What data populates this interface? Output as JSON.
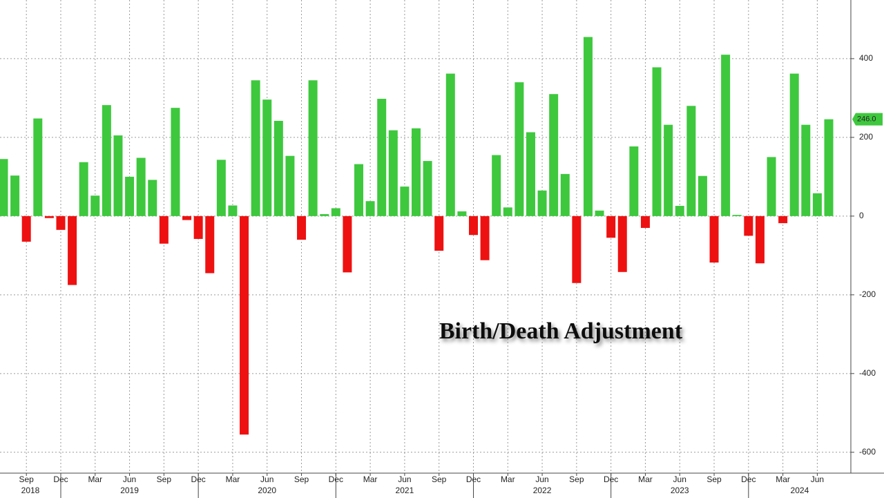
{
  "chart_data": {
    "type": "bar",
    "annotation": "Birth/Death Adjustment",
    "categories": [
      null,
      null,
      "Sep",
      null,
      null,
      "Dec",
      null,
      null,
      "Mar",
      null,
      null,
      "Jun",
      null,
      null,
      "Sep",
      null,
      null,
      "Dec",
      null,
      null,
      "Mar",
      null,
      null,
      "Jun",
      null,
      null,
      "Sep",
      null,
      null,
      "Dec",
      null,
      null,
      "Mar",
      null,
      null,
      "Jun",
      null,
      null,
      "Sep",
      null,
      null,
      "Dec",
      null,
      null,
      "Mar",
      null,
      null,
      "Jun",
      null,
      null,
      "Sep",
      null,
      null,
      "Dec",
      null,
      null,
      "Mar",
      null,
      null,
      "Jun",
      null,
      null,
      "Sep",
      null,
      null,
      "Dec",
      null,
      null,
      "Mar",
      null,
      null,
      "Jun",
      null
    ],
    "years": [
      "2018",
      "2019",
      "2020",
      "2021",
      "2022",
      "2023",
      "2024"
    ],
    "values": [
      145,
      103,
      -65,
      248,
      -5,
      -35,
      -175,
      137,
      52,
      282,
      205,
      100,
      148,
      92,
      -70,
      275,
      -10,
      -58,
      -145,
      143,
      27,
      -555,
      345,
      296,
      242,
      153,
      -60,
      345,
      5,
      20,
      -143,
      132,
      38,
      298,
      218,
      75,
      223,
      140,
      -88,
      362,
      12,
      -48,
      -112,
      155,
      22,
      340,
      213,
      65,
      310,
      107,
      -170,
      455,
      14,
      -55,
      -142,
      177,
      -30,
      378,
      232,
      26,
      280,
      102,
      -118,
      410,
      3,
      -50,
      -120,
      150,
      -18,
      362,
      232,
      58,
      246
    ],
    "value_labels": [
      null,
      null,
      null,
      null,
      null,
      null,
      null,
      null,
      null,
      null,
      null,
      null,
      null,
      null,
      null,
      null,
      null,
      null,
      null,
      null,
      null,
      null,
      null,
      null,
      null,
      null,
      null,
      null,
      null,
      null,
      null,
      null,
      null,
      null,
      null,
      null,
      null,
      null,
      null,
      null,
      null,
      null,
      null,
      null,
      null,
      null,
      null,
      null,
      null,
      null,
      null,
      null,
      null,
      null,
      null,
      null,
      null,
      null,
      null,
      null,
      null,
      null,
      null,
      null,
      null,
      null,
      null,
      null,
      null,
      null,
      null,
      null,
      "246.0"
    ],
    "positive_color": "#3ec83e",
    "negative_color": "#ee1111",
    "ylim": [
      -653,
      549
    ],
    "yticks": [
      -600,
      -400,
      -200,
      0,
      200,
      400
    ],
    "grid": true
  }
}
